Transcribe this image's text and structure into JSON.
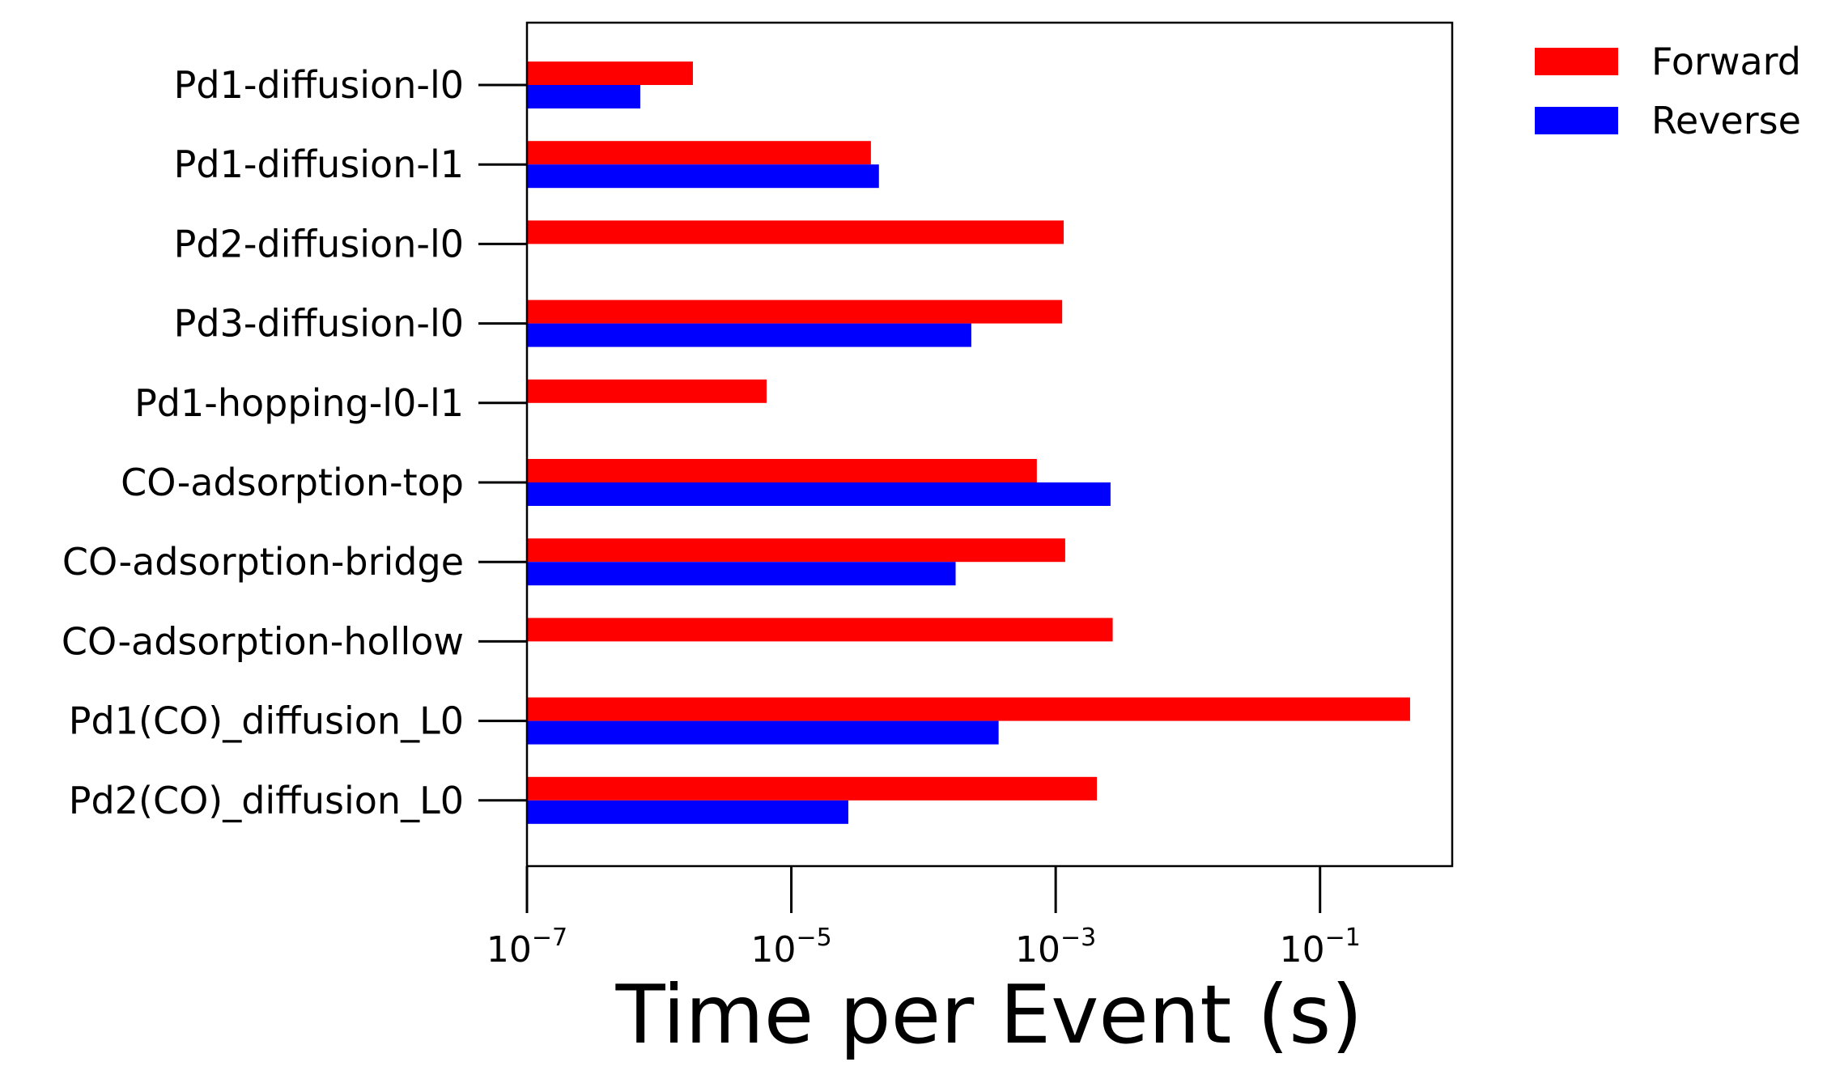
{
  "chart_data": {
    "type": "bar",
    "orientation": "horizontal",
    "xscale": "log",
    "xlabel": "Time per Event (s)",
    "ylabel": "",
    "title": "",
    "xlim": [
      1e-07,
      1
    ],
    "xticks": [
      {
        "value": 1e-07,
        "base": "10",
        "exp": "−7"
      },
      {
        "value": 1e-05,
        "base": "10",
        "exp": "−5"
      },
      {
        "value": 0.001,
        "base": "10",
        "exp": "−3"
      },
      {
        "value": 0.1,
        "base": "10",
        "exp": "−1"
      }
    ],
    "categories": [
      "Pd1-diffusion-l0",
      "Pd1-diffusion-l1",
      "Pd2-diffusion-l0",
      "Pd3-diffusion-l0",
      "Pd1-hopping-l0-l1",
      "CO-adsorption-top",
      "CO-adsorption-bridge",
      "CO-adsorption-hollow",
      "Pd1(CO)_diffusion_L0",
      "Pd2(CO)_diffusion_L0"
    ],
    "series": [
      {
        "name": "Forward",
        "color": "#ff0000",
        "values": [
          1.8e-06,
          4e-05,
          0.00115,
          0.00112,
          6.5e-06,
          0.00072,
          0.00118,
          0.0027,
          0.48,
          0.00205
        ]
      },
      {
        "name": "Reverse",
        "color": "#0000ff",
        "values": [
          7.2e-07,
          4.6e-05,
          null,
          0.00023,
          null,
          0.0026,
          0.000175,
          null,
          0.00037,
          2.7e-05
        ]
      }
    ],
    "legend": "upper-right-outside",
    "grid": false
  }
}
